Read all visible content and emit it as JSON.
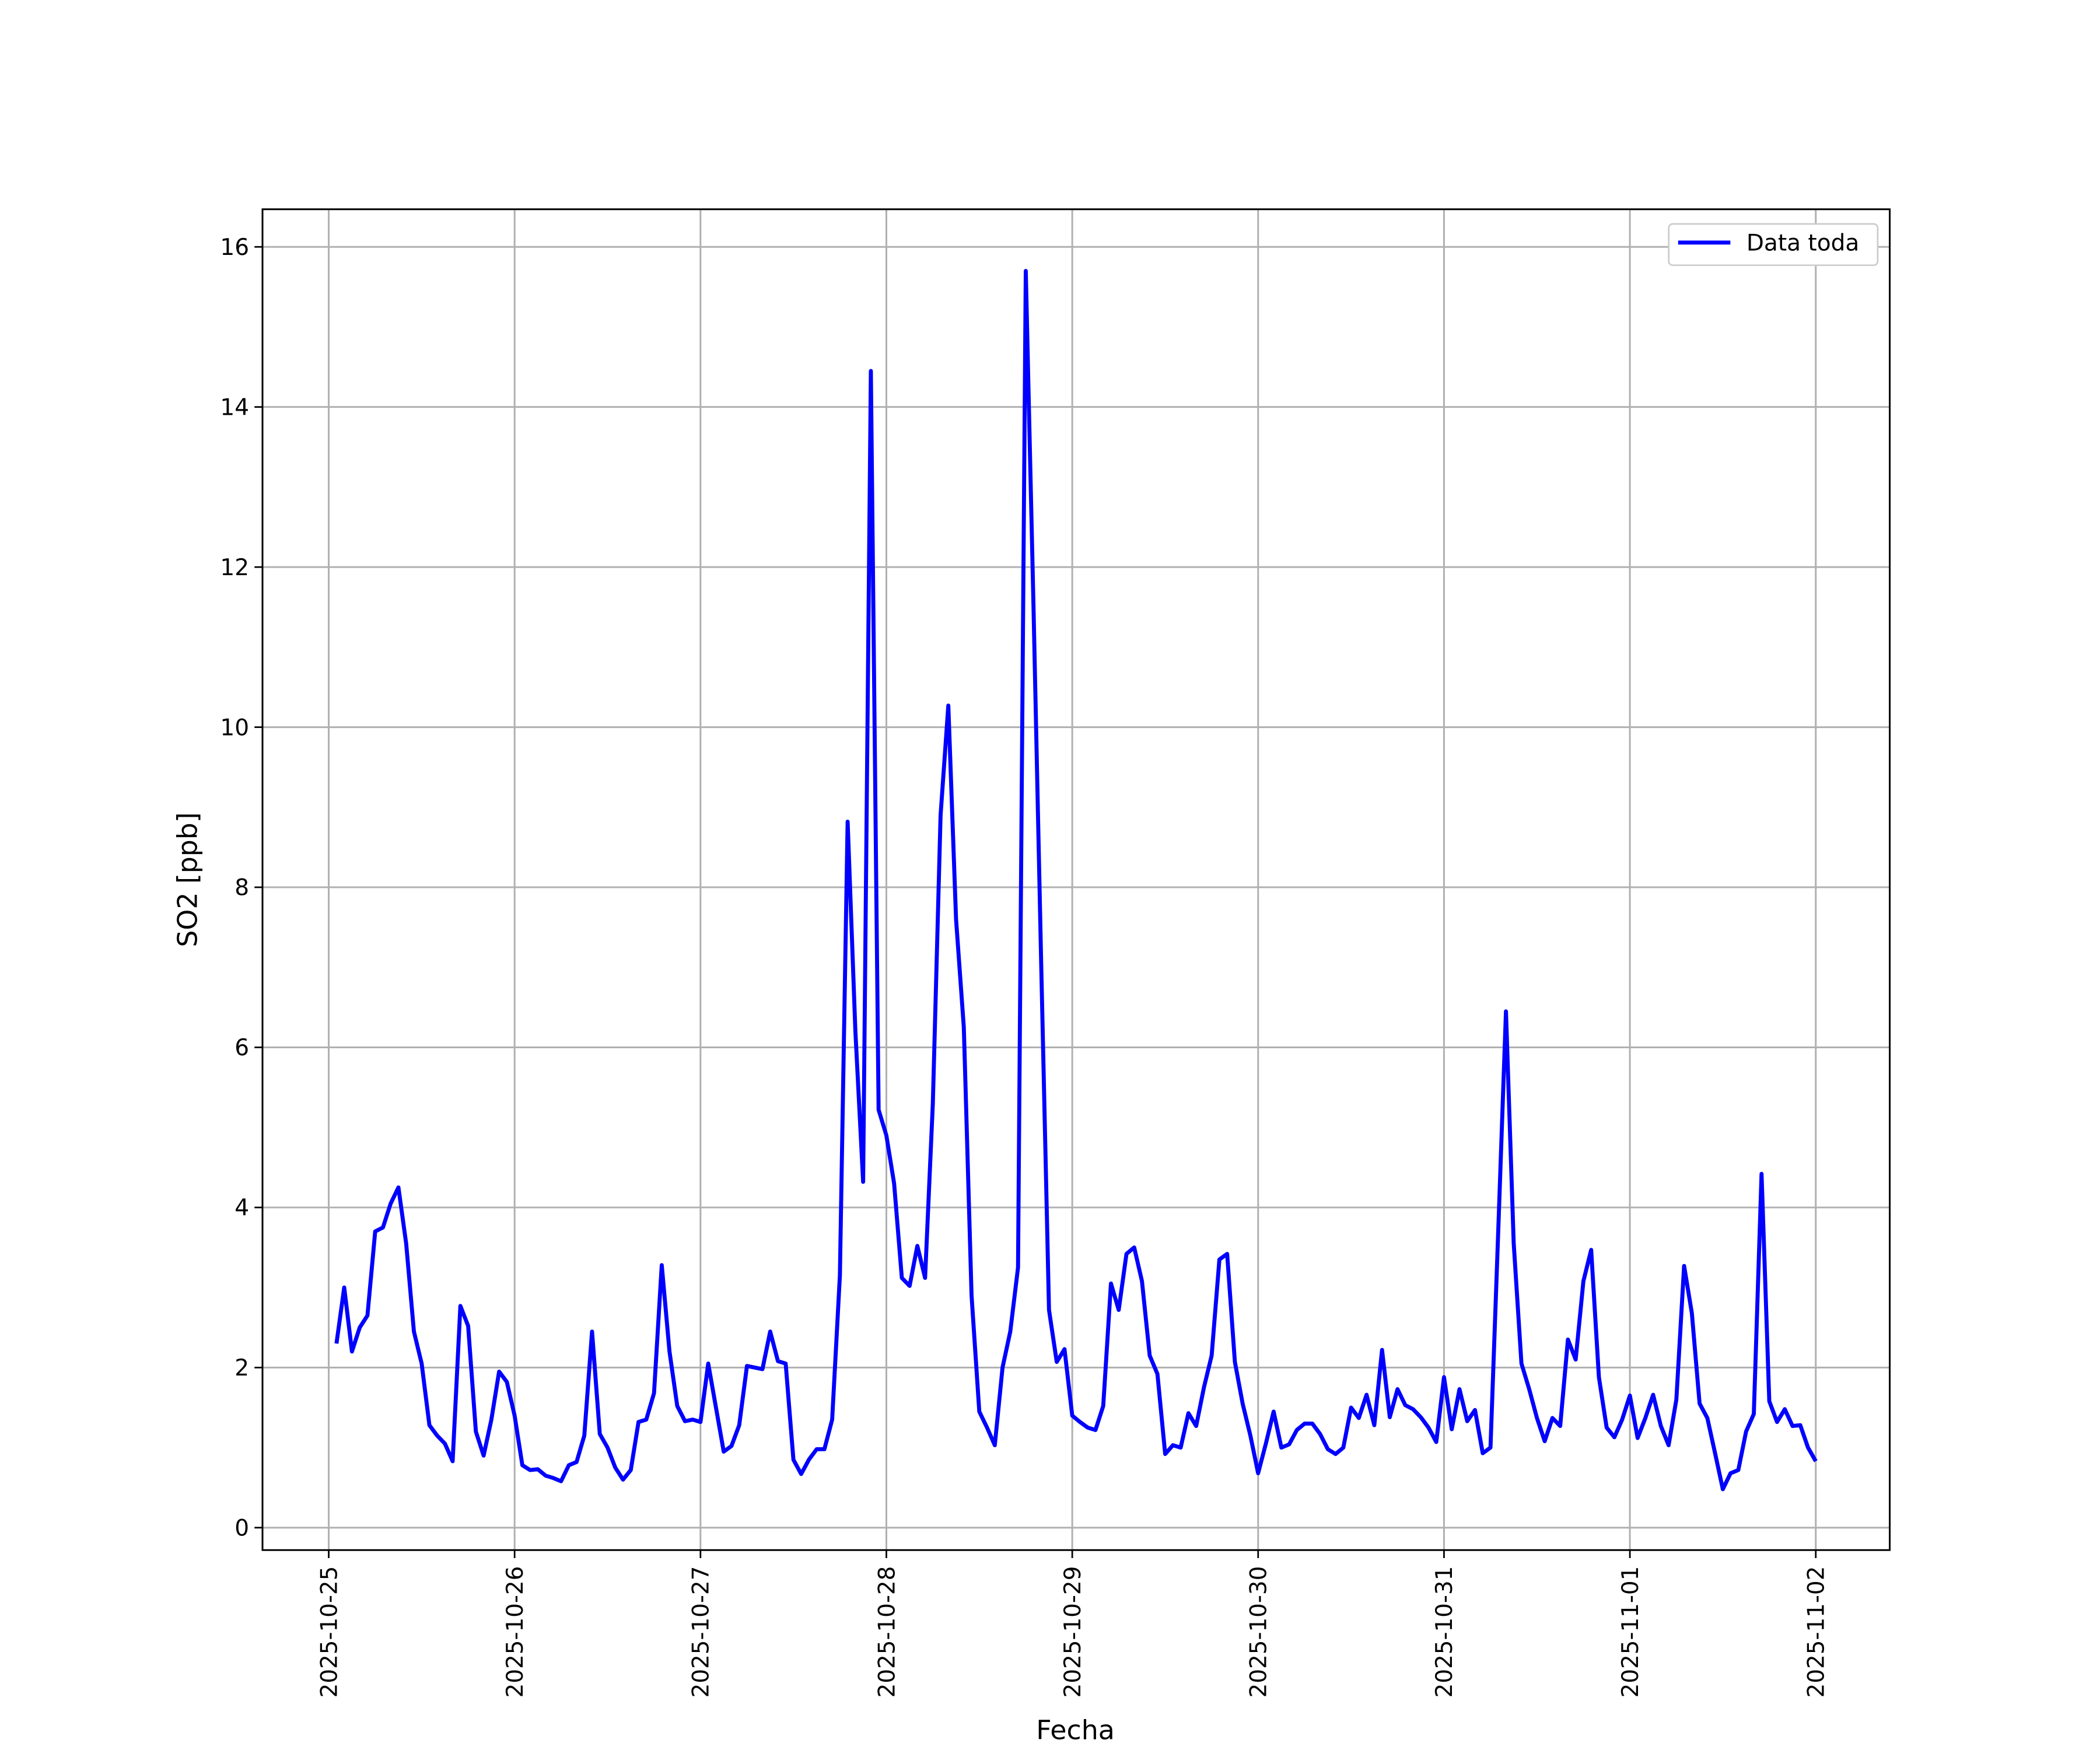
{
  "chart_data": {
    "type": "line",
    "xlabel": "Fecha",
    "ylabel": "SO2 [ppb]",
    "x": [
      1,
      2,
      3,
      4,
      5,
      6,
      7,
      8,
      9,
      10,
      11,
      12,
      13,
      14,
      15,
      16,
      17,
      18,
      19,
      20,
      21,
      22,
      23,
      24,
      25,
      26,
      27,
      28,
      29,
      30,
      31,
      32,
      33,
      34,
      35,
      36,
      37,
      38,
      39,
      40,
      41,
      42,
      43,
      44,
      45,
      46,
      47,
      48,
      49,
      50,
      51,
      52,
      53,
      54,
      55,
      56,
      57,
      58,
      59,
      60,
      61,
      62,
      63,
      64,
      65,
      66,
      67,
      68,
      69,
      70,
      71,
      72,
      73,
      74,
      75,
      76,
      77,
      78,
      79,
      80,
      81,
      82,
      83,
      84,
      85,
      86,
      87,
      88,
      89,
      90,
      91,
      92,
      93,
      94,
      95,
      96,
      97,
      98,
      99,
      100,
      101,
      102,
      103,
      104,
      105,
      106,
      107,
      108,
      109,
      110,
      111,
      112,
      113,
      114,
      115,
      116,
      117,
      118,
      119,
      120,
      121,
      122,
      123,
      124,
      125,
      126,
      127,
      128,
      129,
      130,
      131,
      132,
      133,
      134,
      135,
      136,
      137,
      138,
      139,
      140,
      141,
      142,
      143,
      144,
      145,
      146,
      147,
      148,
      149,
      150,
      151,
      152,
      153,
      154,
      155,
      156,
      157,
      158,
      159,
      160,
      161,
      162,
      163,
      164,
      165,
      166,
      167,
      168,
      169,
      170,
      171,
      172,
      173,
      174,
      175,
      176,
      177,
      178,
      179,
      180,
      181,
      182,
      183,
      184,
      185,
      186,
      187,
      188,
      189,
      190,
      191,
      192
    ],
    "series": [
      {
        "name": "Data toda",
        "color": "#0000ff",
        "values": [
          2.3,
          3.0,
          2.2,
          2.5,
          2.65,
          3.7,
          3.75,
          4.05,
          4.25,
          3.55,
          2.45,
          2.05,
          1.28,
          1.15,
          1.05,
          0.83,
          2.77,
          2.52,
          1.2,
          0.9,
          1.35,
          1.95,
          1.82,
          1.4,
          0.78,
          0.72,
          0.73,
          0.65,
          0.62,
          0.58,
          0.78,
          0.82,
          1.15,
          2.45,
          1.17,
          1.0,
          0.75,
          0.6,
          0.72,
          1.32,
          1.35,
          1.68,
          3.28,
          2.2,
          1.52,
          1.33,
          1.35,
          1.32,
          2.05,
          1.5,
          0.95,
          1.02,
          1.28,
          2.02,
          2.0,
          1.98,
          2.45,
          2.08,
          2.05,
          0.85,
          0.67,
          0.85,
          0.98,
          0.98,
          1.35,
          3.15,
          8.82,
          6.2,
          4.32,
          14.45,
          5.22,
          4.9,
          4.3,
          3.12,
          3.02,
          3.52,
          3.12,
          5.3,
          8.9,
          10.27,
          7.6,
          6.25,
          2.9,
          1.45,
          1.25,
          1.03,
          2.0,
          2.45,
          3.25,
          15.7,
          11.5,
          7.0,
          2.72,
          2.07,
          2.23,
          1.4,
          1.32,
          1.25,
          1.22,
          1.52,
          3.05,
          2.72,
          3.42,
          3.5,
          3.08,
          2.15,
          1.92,
          0.92,
          1.03,
          1.0,
          1.43,
          1.27,
          1.75,
          2.15,
          3.35,
          3.42,
          2.07,
          1.55,
          1.15,
          0.68,
          1.05,
          1.45,
          1.0,
          1.04,
          1.22,
          1.3,
          1.3,
          1.17,
          0.98,
          0.92,
          1.0,
          1.5,
          1.37,
          1.66,
          1.28,
          2.22,
          1.38,
          1.73,
          1.53,
          1.48,
          1.38,
          1.25,
          1.07,
          1.88,
          1.23,
          1.73,
          1.33,
          1.47,
          0.93,
          1.0,
          3.7,
          6.45,
          3.55,
          2.05,
          1.73,
          1.37,
          1.08,
          1.37,
          1.27,
          2.35,
          2.1,
          3.08,
          3.47,
          1.88,
          1.25,
          1.13,
          1.35,
          1.65,
          1.12,
          1.37,
          1.66,
          1.27,
          1.03,
          1.6,
          3.27,
          2.68,
          1.55,
          1.37,
          0.93,
          0.48,
          0.68,
          0.72,
          1.2,
          1.42,
          4.42,
          1.58,
          1.32,
          1.48,
          1.27,
          1.28,
          1.0,
          0.83
        ]
      }
    ],
    "xlim": [
      -8.55,
      201.55
    ],
    "xticks": [
      {
        "value": 0,
        "label": "2025-10-25"
      },
      {
        "value": 24,
        "label": "2025-10-26"
      },
      {
        "value": 48,
        "label": "2025-10-27"
      },
      {
        "value": 72,
        "label": "2025-10-28"
      },
      {
        "value": 96,
        "label": "2025-10-29"
      },
      {
        "value": 120,
        "label": "2025-10-30"
      },
      {
        "value": 144,
        "label": "2025-10-31"
      },
      {
        "value": 168,
        "label": "2025-11-01"
      },
      {
        "value": 192,
        "label": "2025-11-02"
      }
    ],
    "ylim": [
      -0.28,
      16.47
    ],
    "yticks": [
      0,
      2,
      4,
      6,
      8,
      10,
      12,
      14,
      16
    ],
    "grid": true,
    "legend": "upper right"
  }
}
